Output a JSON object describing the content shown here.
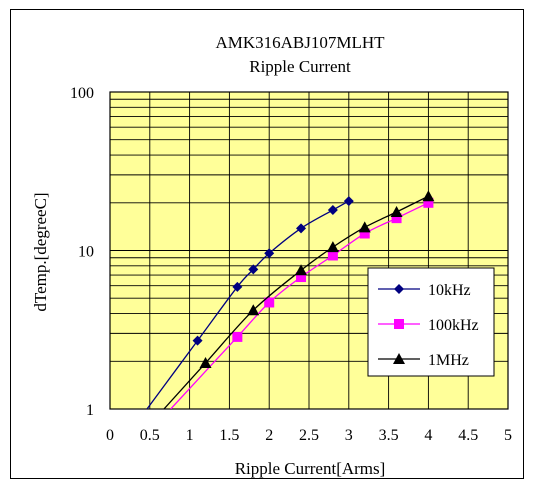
{
  "chart_data": {
    "type": "line",
    "title": "AMK316ABJ107MLHT",
    "subtitle": "Ripple Current",
    "xlabel": "Ripple Current[Arms]",
    "ylabel": "dTemp.[degreeC]",
    "xlim": [
      0,
      5
    ],
    "ylim": [
      1,
      100
    ],
    "yscale": "log",
    "grid": true,
    "legend_position": "right",
    "x_ticks": [
      "0",
      "0.5",
      "1",
      "1.5",
      "2",
      "2.5",
      "3",
      "3.5",
      "4",
      "4.5",
      "5"
    ],
    "y_ticks": [
      "1",
      "10",
      "100"
    ],
    "plot_background": "#FFFF99",
    "series": [
      {
        "name": "10kHz",
        "color": "#000080",
        "marker": "diamond",
        "x": [
          1.1,
          1.6,
          1.8,
          2.0,
          2.4,
          2.8,
          3.0
        ],
        "y": [
          2.7,
          5.9,
          7.6,
          9.6,
          13.8,
          18.0,
          20.5
        ]
      },
      {
        "name": "100kHz",
        "color": "#FF00FF",
        "marker": "square",
        "x": [
          1.6,
          2.0,
          2.4,
          2.8,
          3.2,
          3.6,
          4.0
        ],
        "y": [
          2.85,
          4.7,
          6.8,
          9.3,
          12.8,
          16.0,
          20.0
        ]
      },
      {
        "name": "1MHz",
        "color": "#000000",
        "marker": "triangle",
        "x": [
          1.2,
          1.8,
          2.4,
          2.8,
          3.2,
          3.6,
          4.0
        ],
        "y": [
          1.95,
          4.2,
          7.5,
          10.5,
          14.0,
          17.5,
          22.0
        ]
      }
    ]
  }
}
